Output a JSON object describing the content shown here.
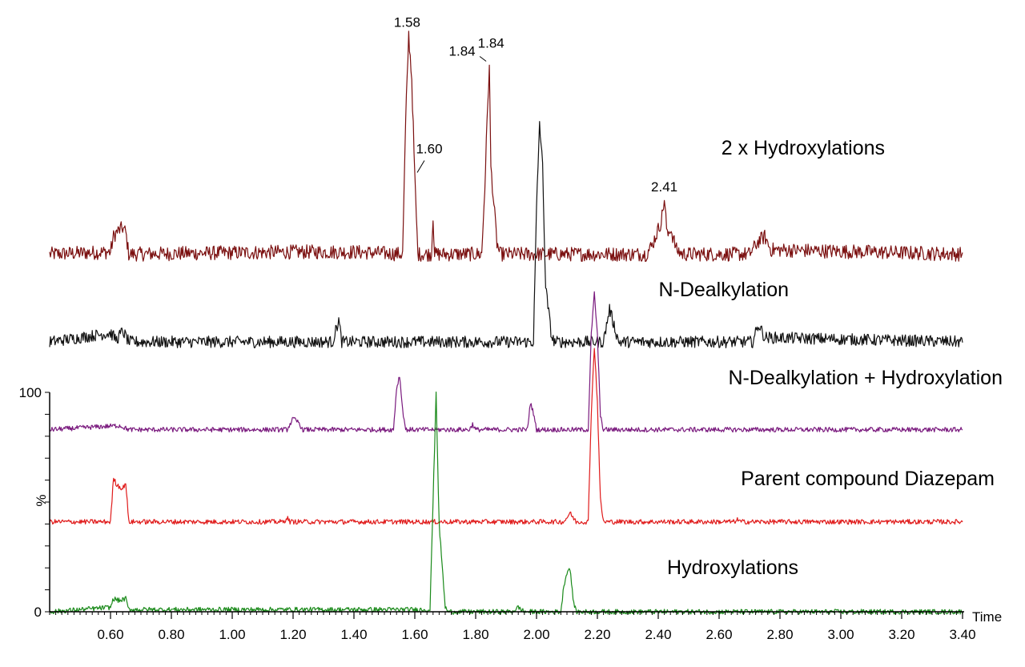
{
  "chart_data": {
    "type": "line",
    "title": "",
    "xlabel": "Time",
    "ylabel": "%",
    "xlim": [
      0.4,
      3.4
    ],
    "ylim": [
      0,
      100
    ],
    "x_ticks": [
      "0.60",
      "0.80",
      "1.00",
      "1.20",
      "1.40",
      "1.60",
      "1.80",
      "2.00",
      "2.20",
      "2.40",
      "2.60",
      "2.80",
      "3.00",
      "3.20",
      "3.40"
    ],
    "y_ticks": [
      "0",
      "100"
    ],
    "grid": false,
    "series": [
      {
        "name": "2 x Hydroxylations",
        "color": "#7b1010",
        "baseline": 163,
        "points": [
          [
            0.4,
            0
          ],
          [
            0.6,
            1
          ],
          [
            0.61,
            8
          ],
          [
            0.62,
            10
          ],
          [
            0.63,
            11
          ],
          [
            0.64,
            12
          ],
          [
            0.65,
            10
          ],
          [
            0.66,
            0
          ],
          [
            1.2,
            1
          ],
          [
            1.4,
            1
          ],
          [
            1.56,
            0
          ],
          [
            1.57,
            60
          ],
          [
            1.58,
            100
          ],
          [
            1.59,
            80
          ],
          [
            1.6,
            35
          ],
          [
            1.61,
            0
          ],
          [
            1.655,
            0
          ],
          [
            1.66,
            18
          ],
          [
            1.665,
            0
          ],
          [
            1.82,
            0
          ],
          [
            1.83,
            30
          ],
          [
            1.84,
            70
          ],
          [
            1.845,
            85
          ],
          [
            1.85,
            40
          ],
          [
            1.87,
            5
          ],
          [
            1.88,
            0
          ],
          [
            2.36,
            0
          ],
          [
            2.38,
            4
          ],
          [
            2.41,
            15
          ],
          [
            2.42,
            25
          ],
          [
            2.43,
            8
          ],
          [
            2.44,
            12
          ],
          [
            2.46,
            2
          ],
          [
            2.48,
            0
          ],
          [
            2.7,
            0
          ],
          [
            2.73,
            6
          ],
          [
            2.75,
            8
          ],
          [
            2.77,
            2
          ],
          [
            3.4,
            0
          ]
        ]
      },
      {
        "name": "N-Dealkylation",
        "color": "#111111",
        "baseline": 123,
        "points": [
          [
            0.4,
            0
          ],
          [
            0.6,
            4
          ],
          [
            0.62,
            1
          ],
          [
            0.64,
            5
          ],
          [
            0.66,
            0
          ],
          [
            1.33,
            0
          ],
          [
            1.35,
            10
          ],
          [
            1.36,
            0
          ],
          [
            1.99,
            0
          ],
          [
            2.0,
            60
          ],
          [
            2.01,
            100
          ],
          [
            2.02,
            80
          ],
          [
            2.03,
            25
          ],
          [
            2.05,
            2
          ],
          [
            2.06,
            0
          ],
          [
            2.22,
            0
          ],
          [
            2.24,
            15
          ],
          [
            2.26,
            5
          ],
          [
            2.27,
            0
          ],
          [
            2.71,
            0
          ],
          [
            2.73,
            8
          ],
          [
            2.75,
            2
          ],
          [
            3.4,
            0
          ]
        ]
      },
      {
        "name": "N-Dealkylation + Hydroxylation",
        "color": "#7a1a7e",
        "baseline": 83,
        "points": [
          [
            0.4,
            0
          ],
          [
            0.63,
            3
          ],
          [
            0.66,
            0
          ],
          [
            1.18,
            0
          ],
          [
            1.2,
            8
          ],
          [
            1.22,
            5
          ],
          [
            1.23,
            0
          ],
          [
            1.53,
            0
          ],
          [
            1.54,
            30
          ],
          [
            1.55,
            40
          ],
          [
            1.56,
            15
          ],
          [
            1.57,
            0
          ],
          [
            1.78,
            0
          ],
          [
            1.79,
            4
          ],
          [
            1.8,
            0
          ],
          [
            1.97,
            0
          ],
          [
            1.98,
            20
          ],
          [
            1.99,
            12
          ],
          [
            2.0,
            0
          ],
          [
            2.17,
            0
          ],
          [
            2.18,
            70
          ],
          [
            2.19,
            100
          ],
          [
            2.2,
            70
          ],
          [
            2.21,
            10
          ],
          [
            2.22,
            0
          ],
          [
            3.4,
            0
          ]
        ]
      },
      {
        "name": "Parent compound Diazepam",
        "color": "#e01b1b",
        "baseline": 41,
        "points": [
          [
            0.4,
            0
          ],
          [
            0.6,
            0
          ],
          [
            0.61,
            20
          ],
          [
            0.62,
            17
          ],
          [
            0.63,
            16
          ],
          [
            0.64,
            15
          ],
          [
            0.65,
            18
          ],
          [
            0.66,
            0
          ],
          [
            1.17,
            0
          ],
          [
            1.18,
            2
          ],
          [
            1.19,
            0
          ],
          [
            2.09,
            0
          ],
          [
            2.11,
            4
          ],
          [
            2.13,
            0
          ],
          [
            2.17,
            0
          ],
          [
            2.18,
            50
          ],
          [
            2.19,
            80
          ],
          [
            2.2,
            55
          ],
          [
            2.21,
            10
          ],
          [
            2.22,
            0
          ],
          [
            2.65,
            0
          ],
          [
            2.66,
            1
          ],
          [
            2.67,
            0
          ],
          [
            3.4,
            0
          ]
        ]
      },
      {
        "name": "Hydroxylations",
        "color": "#1a8a1a",
        "baseline": 0,
        "points": [
          [
            0.4,
            0
          ],
          [
            0.6,
            2
          ],
          [
            0.61,
            6
          ],
          [
            0.63,
            5
          ],
          [
            0.65,
            6
          ],
          [
            0.66,
            1
          ],
          [
            1.65,
            1
          ],
          [
            1.66,
            50
          ],
          [
            1.67,
            100
          ],
          [
            1.68,
            40
          ],
          [
            1.7,
            2
          ],
          [
            1.71,
            0
          ],
          [
            1.92,
            0
          ],
          [
            1.94,
            2
          ],
          [
            1.96,
            0
          ],
          [
            2.08,
            0
          ],
          [
            2.09,
            12
          ],
          [
            2.1,
            18
          ],
          [
            2.11,
            20
          ],
          [
            2.12,
            6
          ],
          [
            2.13,
            0
          ],
          [
            3.4,
            0
          ]
        ]
      }
    ],
    "annotations": [
      {
        "text": "1.58",
        "series": 0,
        "x": 1.58
      },
      {
        "text": "1.60",
        "series": 0,
        "x": 1.6
      },
      {
        "text": "1.84",
        "series": 0,
        "x": 1.84
      },
      {
        "text": "1.84",
        "series": 0,
        "x": 1.845
      },
      {
        "text": "2.41",
        "series": 0,
        "x": 2.42
      }
    ]
  }
}
